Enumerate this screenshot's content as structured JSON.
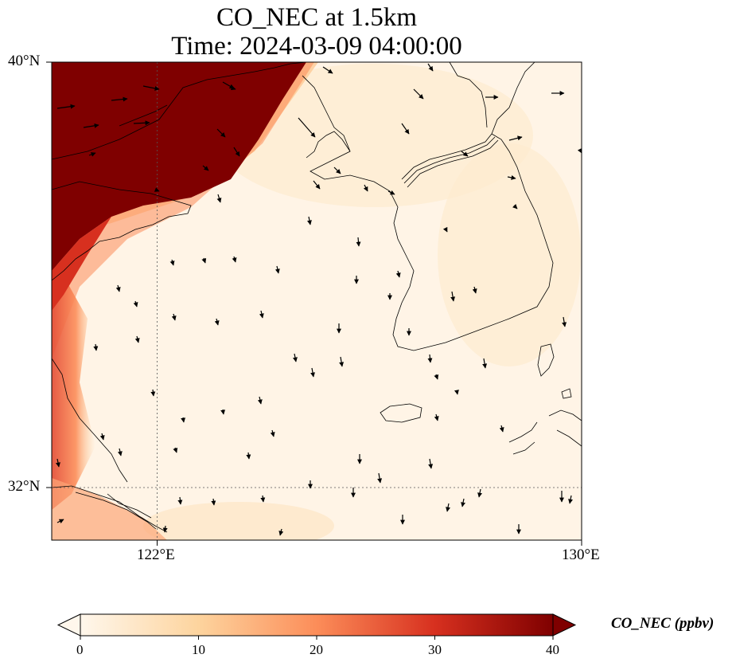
{
  "title": {
    "line1": "CO_NEC at 1.5km",
    "line2": "Time: 2024-03-09 04:00:00"
  },
  "map": {
    "lon_range": [
      118,
      130
    ],
    "lat_range": [
      30.8,
      40
    ],
    "gridlines": {
      "lon": [
        122
      ],
      "lat": [
        32
      ]
    },
    "lat_labels": [
      "40°N",
      "32°N"
    ],
    "lon_labels": [
      "122°E",
      "130°E"
    ],
    "field": "CO_NEC",
    "wind_vectors": "shown",
    "coastlines": "shown"
  },
  "colorbar": {
    "label": "CO_NEC (ppbv)",
    "ticks": [
      "0",
      "10",
      "20",
      "30",
      "40"
    ],
    "vmin": 0,
    "vmax": 40,
    "colormap": "OrRd",
    "extend": "both",
    "colors": [
      "#fff7ec",
      "#fdd49e",
      "#fc8d59",
      "#d7301f",
      "#7f0000"
    ]
  }
}
